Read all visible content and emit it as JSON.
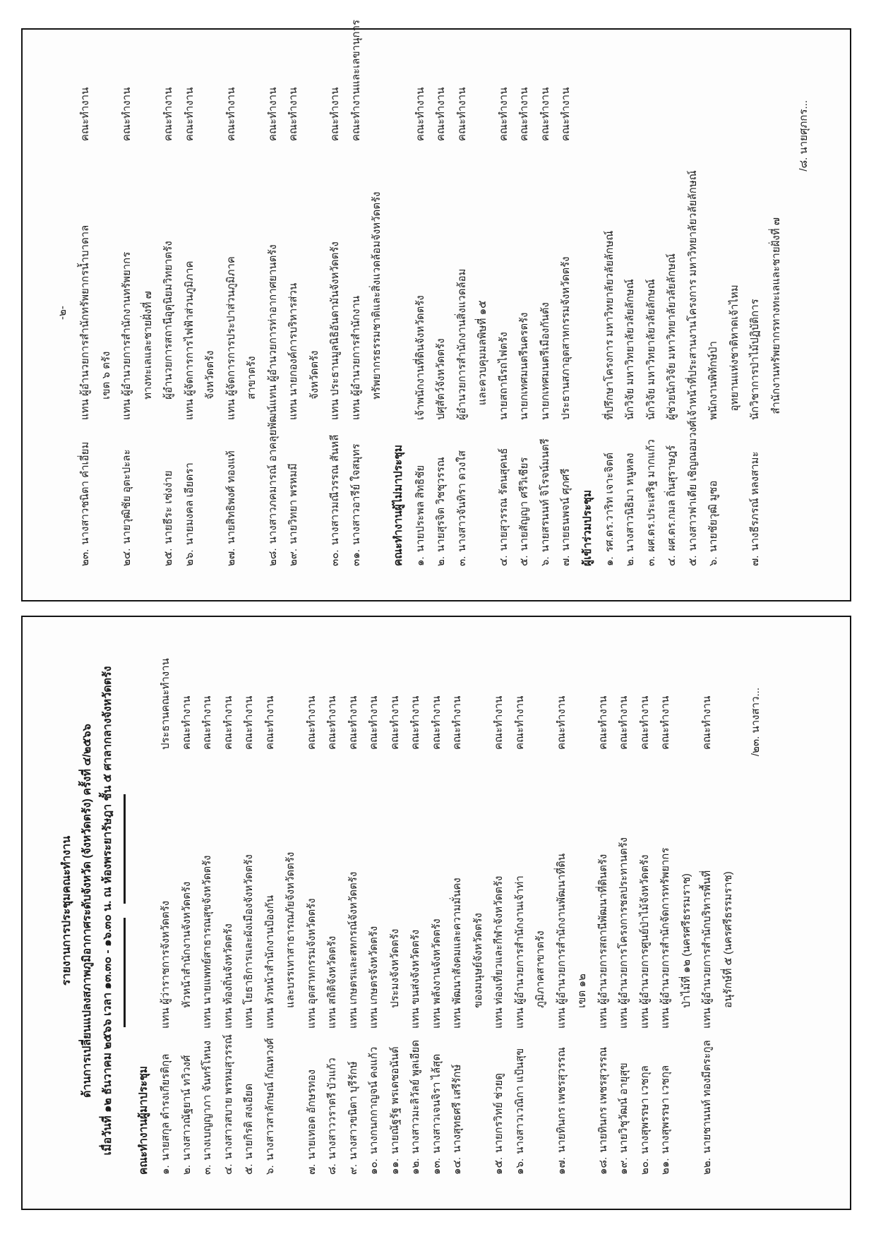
{
  "colors": {
    "ink": "#1b1b1b",
    "border": "#141414",
    "paper": "#fdfdfd"
  },
  "page1": {
    "title_lines": [
      "รายงานการประชุมคณะทำงาน",
      "ด้านการเปลี่ยนแปลงสภาพภูมิอากาศระดับจังหวัด (จังหวัดตรัง) ครั้งที่ ๔/๒๕๖๖",
      "เมื่อวันที่ ๑๒ ธันวาคม ๒๕๖๖ เวลา ๑๓.๓๐ - ๑๖.๓๐ น. ณ ห้องพระยารัษฎา ชั้น ๕ ศาลากลางจังหวัดตรัง"
    ],
    "attendees_heading": "คณะทำงานผู้มาประชุม",
    "attendees": [
      {
        "no": "๑.",
        "name": "นายสกุล ดำรงเกียรติกุล",
        "position": "แทน ผู้ว่าราชการจังหวัดตรัง",
        "role": "ประธานคณะทำงาน"
      },
      {
        "no": "๒.",
        "name": "นางสาวณัฐยาน์ ทวิวงศ์",
        "position": "       หัวหน้าสำนักงานจังหวัดตรัง",
        "role": "คณะทำงาน"
      },
      {
        "no": "๓.",
        "name": "นางเบญญาภา จันทร์โหนง",
        "position": "แทน นายแพทย์สาธารณสุขจังหวัดตรัง",
        "role": "คณะทำงาน"
      },
      {
        "no": "๔.",
        "name": "นางสาวสบาย พรหมสุวรรณ์",
        "position": "แทน ท้องถิ่นจังหวัดตรัง",
        "role": "คณะทำงาน"
      },
      {
        "no": "๕.",
        "name": "นายกิรติ สงเอียด",
        "position": "แทน โยธาธิการและผังเมืองจังหวัดตรัง",
        "role": "คณะทำงาน"
      },
      {
        "no": "๖.",
        "name": "นางสาวสาลักษณ์ กัณหวงศ์",
        "position": "แทน หัวหน้าสำนักงานป้องกัน\n       และบรรเทาสาธารณภัยจังหวัดตรัง",
        "role": "คณะทำงาน"
      },
      {
        "no": "๗.",
        "name": "นายเทอด อักษรทอง",
        "position": "แทน อุตสาหกรรมจังหวัดตรัง",
        "role": "คณะทำงาน"
      },
      {
        "no": "๘.",
        "name": "นางสาววราตรี บัวแก้ว",
        "position": "แทน สถิติจังหวัดตรัง",
        "role": "คณะทำงาน"
      },
      {
        "no": "๙.",
        "name": "นางสาวขนิตา บุรีรักษ์",
        "position": "แทน เกษตรและสหกรณ์จังหวัดตรัง",
        "role": "คณะทำงาน"
      },
      {
        "no": "๑๐.",
        "name": "นางกนกกาญจน์ คงแก้ว",
        "position": "แทน เกษตรจังหวัดตรัง",
        "role": "คณะทำงาน"
      },
      {
        "no": "๑๑.",
        "name": "นายณัฐรัฐ พรเดชอนันต์",
        "position": "       ประมงจังหวัดตรัง",
        "role": "คณะทำงาน"
      },
      {
        "no": "๑๒.",
        "name": "นางสาวมะลิวัลย์ พูลเอียด",
        "position": "แทน ขนส่งจังหวัดตรัง",
        "role": "คณะทำงาน"
      },
      {
        "no": "๑๓.",
        "name": "นางสาวเจนจิรา ไล้สุด",
        "position": "แทน พลังงานจังหวัดตรัง",
        "role": "คณะทำงาน"
      },
      {
        "no": "๑๔.",
        "name": "นางสุทธศรี เสรีรักษ์",
        "position": "แทน พัฒนาสังคมและความมั่นคง\n       ของมนุษย์จังหวัดตรัง",
        "role": "คณะทำงาน"
      },
      {
        "no": "๑๕.",
        "name": "นายกรวิทย์ ช่วยดู",
        "position": "แทน ท่องเที่ยวและกีฬาจังหวัดตรัง",
        "role": "คณะทำงาน"
      },
      {
        "no": "๑๖.",
        "name": "นางสาวเวณิกา แป้นสุข",
        "position": "แทน ผู้อำนวยการสำนักงานเจ้าท่า\n       ภูมิภาคสาขาตรัง",
        "role": "คณะทำงาน"
      },
      {
        "no": "๑๗.",
        "name": "นายทินกร เพชรสุวรรณ",
        "position": "แทน ผู้อำนวยการสำนักงานพัฒนาที่ดิน\n       เขต ๑๒",
        "role": "คณะทำงาน"
      },
      {
        "no": "๑๘.",
        "name": "นายทินกร เพชรสุวรรณ",
        "position": "แทน ผู้อำนวยการสถานีพัฒนาที่ดินตรัง",
        "role": "คณะทำงาน"
      },
      {
        "no": "๑๙.",
        "name": "นายวิชุวัฒน์ อายุสุข",
        "position": "แทน ผู้อำนวยการโครงการชลประทานตรัง",
        "role": "คณะทำงาน"
      },
      {
        "no": "๒๐.",
        "name": "นางสุพรรษา เวชกุล",
        "position": "แทน ผู้อำนวยการศูนย์ป่าไม้จังหวัดตรัง",
        "role": "คณะทำงาน"
      },
      {
        "no": "๒๑.",
        "name": "นางสุพรรษา เวชกุล",
        "position": "แทน ผู้อำนวยการสำนักจัดการทรัพยากร\n       ป่าไม้ที่ ๑๒ (นครศรีธรรมราช)",
        "role": "คณะทำงาน"
      },
      {
        "no": "๒๒.",
        "name": "นายชานนท์ ทองมีตระกูล",
        "position": "แทน ผู้อำนวยการสำนักบริหารพื้นที่\n       อนุรักษ์ที่ ๕ (นครศรีธรรมราช)",
        "role": "คณะทำงาน"
      }
    ],
    "footer": "/๒๓. นางสาว..."
  },
  "page2": {
    "page_number": "-๒-",
    "attendees_cont": [
      {
        "no": "๒๓.",
        "name": "นางสาวชนิตา คำเอี่ยม",
        "position": "แทน ผู้อำนวยการสำนักทรัพยากรน้ำบาดาล\n       เขต ๖ ตรัง",
        "role": "คณะทำงาน"
      },
      {
        "no": "๒๔.",
        "name": "นายวุฒิชัย อุตะปะละ",
        "position": "แทน ผู้อำนวยการสำนักงานทรัพยากร\n       ทางทะเลและชายฝั่งที่ ๗",
        "role": "คณะทำงาน"
      },
      {
        "no": "๒๕.",
        "name": "นายธีระ เซ่งง่าย",
        "position": "       ผู้อำนวยการสถานีอุตุนิยมวิทยาตรัง",
        "role": "คณะทำงาน"
      },
      {
        "no": "๒๖.",
        "name": "นายมงคล เอียดรา",
        "position": "แทน ผู้จัดการการไฟฟ้าส่วนภูมิภาค\n       จังหวัดตรัง",
        "role": "คณะทำงาน"
      },
      {
        "no": "๒๗.",
        "name": "นายสิทธิพงศ์ ทองแท้",
        "position": "แทน ผู้จัดการการประปาส่วนภูมิภาค\n       สาขาตรัง",
        "role": "คณะทำงาน"
      },
      {
        "no": "๒๘.",
        "name": "นางสาวภคมารณ์ อาคลุยพัฒน์",
        "position": "แทน ผู้อำนวยการท่าอากาศยานตรัง",
        "role": "คณะทำงาน"
      },
      {
        "no": "๒๙.",
        "name": "นายวิทยา พรหมมี",
        "position": "แทน นายกองค์การบริหารส่วน\n       จังหวัดตรัง",
        "role": "คณะทำงาน"
      },
      {
        "no": "๓๐.",
        "name": "นางสาวมณีวรรณ สันหลี",
        "position": "แทน ประธานมูลนิธิอันดามันจังหวัดตรัง",
        "role": "คณะทำงาน"
      },
      {
        "no": "๓๑.",
        "name": "นางสาวอารีย์ ใจสมุทร",
        "position": "แทน ผู้อำนวยการสำนักงาน\n       ทรัพยากรธรรมชาติและสิ่งแวดล้อมจังหวัดตรัง",
        "role": "คณะทำงานและเลขานุการ"
      }
    ],
    "absent_heading": "คณะทำงานผู้ไม่มาประชุม",
    "absent": [
      {
        "no": "๑.",
        "name": "นายประพล สิทธิชัย",
        "position": "เจ้าพนักงานที่ดินจังหวัดตรัง",
        "role": "คณะทำงาน"
      },
      {
        "no": "๒.",
        "name": "นายสุรจิต วิชชุวรรณ",
        "position": "ปศุสัตว์จังหวัดตรัง",
        "role": "คณะทำงาน"
      },
      {
        "no": "๓.",
        "name": "นางสาวจันทิรา ดวงใส",
        "position": "ผู้อำนวยการสำนักงานสิ่งแวดล้อม\n     และควบคุมมลพิษที่ ๑๕",
        "role": "คณะทำงาน"
      },
      {
        "no": "๔.",
        "name": "นายสุวรรณ รัตนสุคนธ์",
        "position": "นายสถานีรถไฟตรัง",
        "role": "คณะทำงาน"
      },
      {
        "no": "๕.",
        "name": "นายสัญญา ศรีวิเชียร",
        "position": "นายกเทศมนตรีนครตรัง",
        "role": "คณะทำงาน"
      },
      {
        "no": "๖.",
        "name": "นายสรนนท์ จิโรจน์มนตรี",
        "position": "นายกเทศมนตรีเมืองกันตัง",
        "role": "คณะทำงาน"
      },
      {
        "no": "๗.",
        "name": "นายธนพจน์ ศุภศรี",
        "position": "ประธานสภาอุตสาหกรรมจังหวัดตรัง",
        "role": "คณะทำงาน"
      }
    ],
    "participants_heading": "ผู้เข้าร่วมประชุม",
    "participants": [
      {
        "no": "๑.",
        "name": "รศ.ดร.วาริท เจาะจิตต์",
        "position": "ที่ปรึกษาโครงการ มหาวิทยาลัยวลัยลักษณ์",
        "role": ""
      },
      {
        "no": "๒.",
        "name": "นางสาวนิธิมา หนูหลง",
        "position": "นักวิจัย มหาวิทยาลัยวลัยลักษณ์",
        "role": ""
      },
      {
        "no": "๓.",
        "name": "ผศ.ดร.ประเสริฐ มากแก้ว",
        "position": "นักวิจัย มหาวิทยาลัยวลัยลักษณ์",
        "role": ""
      },
      {
        "no": "๔.",
        "name": "ผศ.ดร.กมล ถิ่นสุราษฎร์",
        "position": "ผู้ช่วยนักวิจัย มหาวิทยาลัยวลัยลักษณ์",
        "role": ""
      },
      {
        "no": "๕.",
        "name": "นางสาวฟาเดีย เชิญณอมวงศ์",
        "position": "เจ้าหน้าที่ประสานงานโครงการ มหาวิทยาลัยวลัยลักษณ์",
        "role": ""
      },
      {
        "no": "๖.",
        "name": "นายชัยวุฒิ มูซอ",
        "position": "พนักงานพิทักษ์ป่า\n   อุทยานแห่งชาติหาดเจ้าไหม",
        "role": ""
      },
      {
        "no": "๗.",
        "name": "นางธีรภรณ์ หลงสามะ",
        "position": "นักวิชาการป่าไม้ปฏิบัติการ\n  สำนักงานทรัพยากรทางทะเลและชายฝั่งที่ ๗",
        "role": ""
      }
    ],
    "footer": "/๘. นายศุภกร..."
  }
}
